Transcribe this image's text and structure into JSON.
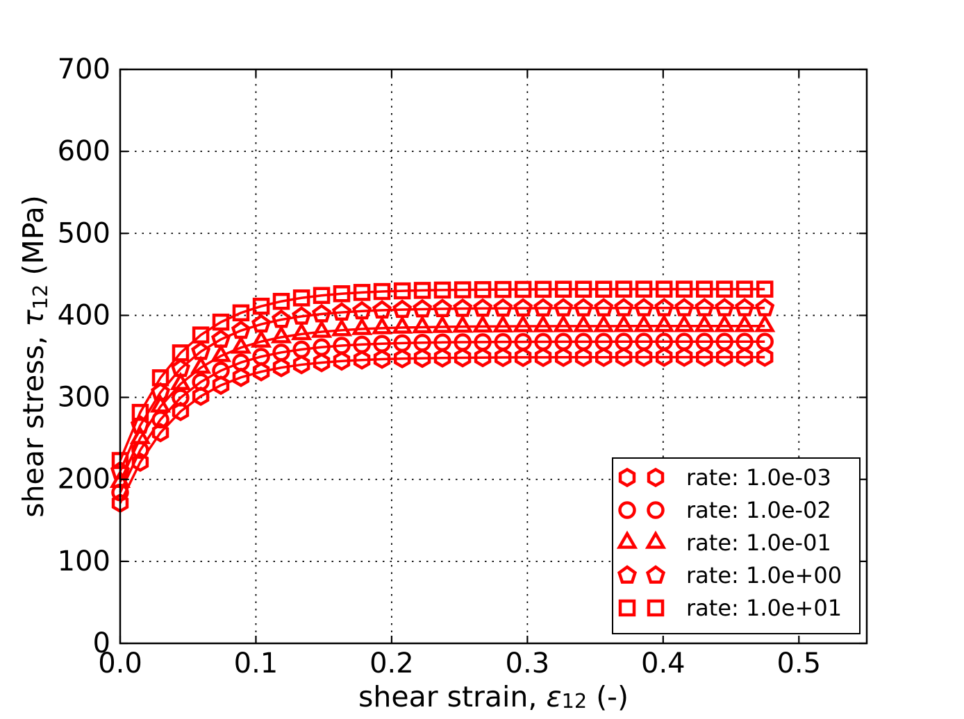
{
  "figure": {
    "background": "#ffffff",
    "accent_color": "#ff0000",
    "text_color": "#000000"
  },
  "chart_data": {
    "type": "line",
    "title": "",
    "xlabel_parts": [
      {
        "t": "shear strain, "
      },
      {
        "t": "ε",
        "italic": true
      },
      {
        "t": "12",
        "sub": true
      },
      {
        "t": " (-)"
      }
    ],
    "ylabel_parts": [
      {
        "t": "shear stress, "
      },
      {
        "t": "τ",
        "italic": true
      },
      {
        "t": "12",
        "sub": true
      },
      {
        "t": " (MPa)"
      }
    ],
    "xlim": [
      0,
      0.55
    ],
    "ylim": [
      0,
      700
    ],
    "xticks": [
      0.0,
      0.1,
      0.2,
      0.3,
      0.4,
      0.5
    ],
    "xtick_labels": [
      "0.0",
      "0.1",
      "0.2",
      "0.3",
      "0.4",
      "0.5"
    ],
    "yticks": [
      0,
      100,
      200,
      300,
      400,
      500,
      600,
      700
    ],
    "ytick_labels": [
      "0",
      "100",
      "200",
      "300",
      "400",
      "500",
      "600",
      "700"
    ],
    "grid": true,
    "grid_style": "dotted",
    "legend_position": "lower right",
    "legend_numpoints": 2,
    "line_color": "#ff0000",
    "x": [
      0.0,
      0.0148,
      0.0297,
      0.0445,
      0.0594,
      0.0742,
      0.089,
      0.1039,
      0.1187,
      0.1336,
      0.1484,
      0.1632,
      0.1781,
      0.1929,
      0.2078,
      0.2226,
      0.2374,
      0.2523,
      0.2671,
      0.282,
      0.2968,
      0.3116,
      0.3265,
      0.3413,
      0.3562,
      0.371,
      0.3858,
      0.4007,
      0.4155,
      0.4304,
      0.4452,
      0.46,
      0.4749
    ],
    "series": [
      {
        "name": "rate: 1.0e-03",
        "marker": "hexagon",
        "values": [
          171.0,
          221.0,
          257.0,
          282.8,
          301.4,
          314.8,
          324.4,
          331.3,
          336.3,
          339.9,
          342.4,
          344.3,
          345.6,
          346.6,
          347.2,
          347.7,
          348.1,
          348.3,
          348.5,
          348.7,
          348.8,
          348.8,
          348.9,
          348.9,
          348.9,
          349.0,
          349.0,
          349.0,
          349.0,
          349.0,
          349.0,
          349.0,
          349.0
        ]
      },
      {
        "name": "rate: 1.0e-02",
        "marker": "circle",
        "values": [
          184.0,
          235.7,
          272.9,
          299.6,
          318.8,
          332.6,
          342.6,
          349.7,
          354.8,
          358.5,
          361.2,
          363.1,
          364.5,
          365.5,
          366.2,
          366.7,
          367.1,
          367.3,
          367.5,
          367.7,
          367.7,
          367.8,
          367.9,
          367.9,
          367.9,
          368.0,
          368.0,
          368.0,
          368.0,
          368.0,
          368.0,
          368.0,
          368.0
        ]
      },
      {
        "name": "rate: 1.0e-01",
        "marker": "triangle-up",
        "values": [
          197.0,
          250.4,
          288.8,
          316.4,
          336.2,
          350.5,
          360.7,
          368.1,
          373.4,
          377.2,
          380.0,
          381.9,
          383.4,
          384.4,
          385.1,
          385.6,
          386.0,
          386.3,
          386.5,
          386.6,
          386.8,
          386.8,
          386.9,
          386.9,
          386.9,
          387.0,
          387.0,
          387.0,
          387.0,
          387.0,
          387.0,
          387.0,
          387.0
        ]
      },
      {
        "name": "rate: 1.0e+00",
        "marker": "pentagon",
        "values": [
          210.0,
          265.9,
          306.1,
          335.0,
          355.8,
          370.7,
          381.5,
          389.2,
          394.8,
          398.8,
          401.6,
          403.7,
          405.2,
          406.3,
          407.0,
          407.6,
          408.0,
          408.3,
          408.5,
          408.6,
          408.7,
          408.8,
          408.9,
          408.9,
          408.9,
          409.0,
          409.0,
          409.0,
          409.0,
          409.0,
          409.0,
          409.0,
          409.0
        ]
      },
      {
        "name": "rate: 1.0e+01",
        "marker": "square",
        "values": [
          223.0,
          281.7,
          323.9,
          354.3,
          376.1,
          391.8,
          403.1,
          411.2,
          417.1,
          421.3,
          424.3,
          426.4,
          428.0,
          429.1,
          429.9,
          430.5,
          430.9,
          431.2,
          431.4,
          431.6,
          431.7,
          431.8,
          431.9,
          431.9,
          431.9,
          432.0,
          432.0,
          432.0,
          432.0,
          432.0,
          432.0,
          432.0,
          432.0
        ]
      }
    ]
  }
}
